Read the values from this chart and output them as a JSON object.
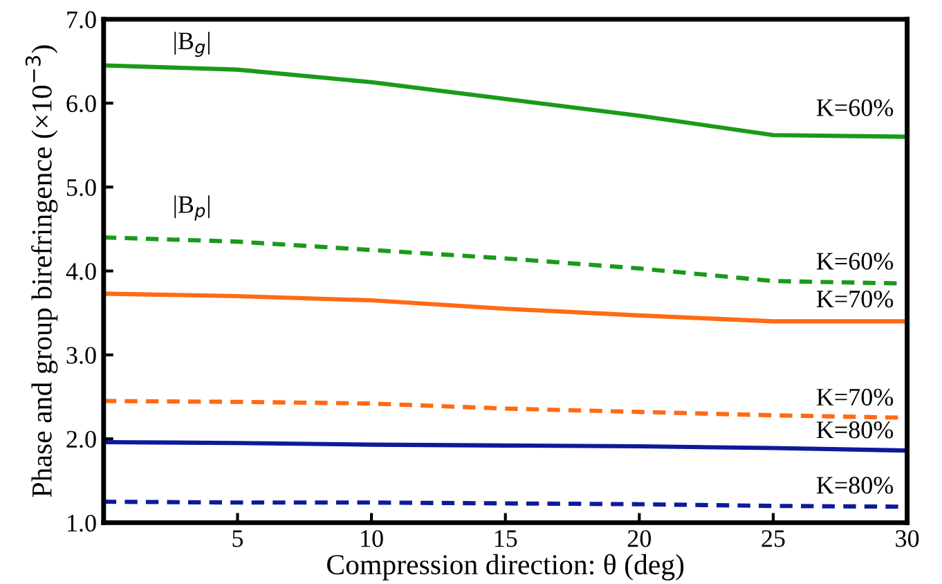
{
  "chart_data": {
    "type": "line",
    "xlabel": "Compression direction: θ (deg)",
    "ylabel": "Phase and group birefringence (×10$^{−3}$)",
    "x": [
      0,
      5,
      10,
      15,
      20,
      25,
      30
    ],
    "series": [
      {
        "color": "#1a9a1a",
        "line_style": "solid",
        "values": [
          6.45,
          6.4,
          6.25,
          6.05,
          5.85,
          5.62,
          5.6
        ]
      },
      {
        "color": "#1a9a1a",
        "line_style": "dashed",
        "values": [
          4.4,
          4.35,
          4.25,
          4.15,
          4.03,
          3.88,
          3.85
        ]
      },
      {
        "color": "#ff6a14",
        "line_style": "solid",
        "values": [
          3.73,
          3.7,
          3.65,
          3.55,
          3.47,
          3.4,
          3.4
        ]
      },
      {
        "color": "#ff6a14",
        "line_style": "dashed",
        "values": [
          2.45,
          2.44,
          2.42,
          2.36,
          2.32,
          2.28,
          2.25
        ]
      },
      {
        "color": "#0d1a9a",
        "line_style": "solid",
        "values": [
          1.96,
          1.95,
          1.93,
          1.92,
          1.91,
          1.89,
          1.86
        ]
      },
      {
        "color": "#0d1a9a",
        "line_style": "dashed",
        "values": [
          1.25,
          1.24,
          1.24,
          1.23,
          1.22,
          1.2,
          1.19
        ]
      }
    ],
    "annotations": [
      "|B$_{g}$|",
      "|B$_{p}$|",
      "K=60%",
      "K=60%",
      "K=70%",
      "K=70%",
      "K=80%",
      "K=80%"
    ],
    "xlim": [
      0,
      30
    ],
    "xticks": [
      5,
      10,
      15,
      20,
      25,
      30
    ],
    "ylim": [
      1.0,
      7.0
    ],
    "yticks": [
      {
        "value": 1,
        "label": "1.0"
      },
      {
        "value": 2,
        "label": "2.0"
      },
      {
        "value": 3,
        "label": "3.0"
      },
      {
        "value": 4,
        "label": "4.0"
      },
      {
        "value": 5,
        "label": "5.0"
      },
      {
        "value": 6,
        "label": "6.0"
      },
      {
        "value": 7,
        "label": "7.0"
      }
    ],
    "grid": false,
    "legend": false
  }
}
